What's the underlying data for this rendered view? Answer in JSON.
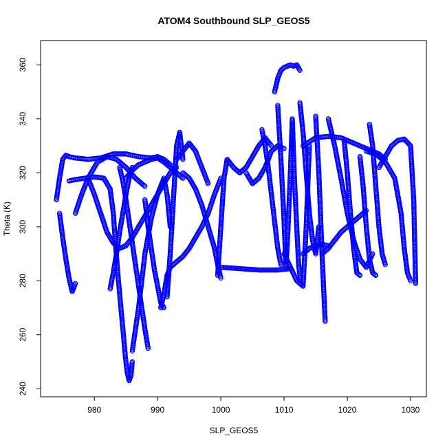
{
  "chart_data": {
    "type": "scatter",
    "title": "ATOM4 Southbound SLP_GEOS5",
    "xlabel": "SLP_GEOS5",
    "ylabel": "Theta (K)",
    "xlim": [
      971.5,
      1032.5
    ],
    "ylim": [
      237.0,
      369.0
    ],
    "xticks": [
      980,
      990,
      1000,
      1010,
      1020,
      1030
    ],
    "yticks": [
      240,
      260,
      280,
      300,
      320,
      340,
      360
    ],
    "marker": "open-circle",
    "point_color": "#0000ff",
    "line_color": "#0000ff",
    "grid": false,
    "legend": "none",
    "series": [
      {
        "x": [
          974.0,
          974.5,
          975.0,
          975.5,
          976.0,
          977.0,
          979.0,
          981.0,
          983.0,
          985.0,
          987.0,
          989.0,
          990.0,
          991.0,
          992.0
        ],
        "y": [
          310.0,
          318.0,
          325.0,
          326.5,
          326.0,
          325.5,
          325.0,
          325.5,
          327.0,
          327.0,
          326.0,
          325.5,
          326.0,
          325.0,
          323.0
        ]
      },
      {
        "x": [
          974.5,
          975.0,
          975.5,
          976.0,
          976.5,
          977.0
        ],
        "y": [
          305.0,
          296.0,
          288.0,
          281.0,
          276.0,
          279.0
        ]
      },
      {
        "x": [
          976.0,
          977.0,
          978.5,
          980.0,
          981.5,
          982.5,
          983.0,
          983.3,
          983.7,
          984.2,
          984.6,
          984.9,
          985.2,
          985.5,
          985.8,
          986.0
        ],
        "y": [
          317.0,
          317.5,
          318.0,
          318.5,
          318.0,
          314.0,
          305.0,
          295.0,
          283.0,
          270.0,
          260.0,
          252.0,
          246.0,
          243.0,
          245.0,
          250.0
        ]
      },
      {
        "x": [
          977.0,
          978.0,
          979.0,
          980.5,
          982.0,
          983.5,
          985.0,
          986.5,
          988.0
        ],
        "y": [
          305.0,
          312.0,
          318.0,
          324.0,
          326.0,
          325.0,
          322.0,
          318.0,
          315.0
        ]
      },
      {
        "x": [
          979.0,
          980.0,
          981.0,
          982.0,
          983.0,
          984.0,
          985.0,
          986.0,
          987.0,
          988.0,
          989.0,
          990.0,
          991.0,
          992.0,
          993.0
        ],
        "y": [
          318.0,
          312.0,
          305.0,
          298.0,
          294.0,
          292.0,
          293.0,
          296.0,
          300.0,
          304.0,
          308.0,
          312.0,
          316.0,
          320.0,
          322.0
        ]
      },
      {
        "x": [
          982.5,
          983.0,
          983.5,
          984.0,
          984.5,
          985.0,
          985.5,
          986.0
        ],
        "y": [
          277.0,
          283.0,
          290.0,
          298.0,
          305.0,
          312.0,
          318.0,
          322.0
        ]
      },
      {
        "x": [
          984.0,
          984.5,
          985.0,
          985.5,
          986.0,
          986.5,
          987.0,
          987.5,
          988.0,
          988.5
        ],
        "y": [
          322.0,
          317.0,
          310.0,
          302.0,
          294.0,
          286.0,
          278.0,
          270.0,
          262.0,
          255.0
        ]
      },
      {
        "x": [
          986.0,
          986.5,
          987.0,
          987.5,
          988.0,
          989.0,
          990.0,
          991.0,
          991.5,
          992.0
        ],
        "y": [
          254.0,
          262.0,
          270.0,
          280.0,
          290.0,
          303.0,
          312.0,
          318.0,
          312.0,
          300.0
        ]
      },
      {
        "x": [
          985.0,
          986.0,
          987.0,
          988.0,
          989.0,
          990.0,
          991.0,
          992.0,
          993.0,
          994.0
        ],
        "y": [
          318.0,
          321.0,
          323.0,
          324.0,
          325.0,
          325.5,
          324.0,
          322.0,
          320.0,
          318.0
        ]
      },
      {
        "x": [
          988.0,
          988.5,
          989.0,
          989.5,
          990.0,
          990.5,
          991.0
        ],
        "y": [
          310.0,
          300.0,
          292.0,
          284.0,
          278.0,
          272.0,
          270.0
        ]
      },
      {
        "x": [
          990.5,
          991.0,
          991.5,
          992.0,
          992.5,
          993.0,
          994.0,
          995.0,
          996.0,
          997.0,
          998.0,
          999.0,
          1000.0
        ],
        "y": [
          270.0,
          275.0,
          282.0,
          285.0,
          286.0,
          287.0,
          289.0,
          292.0,
          296.0,
          300.0,
          305.0,
          312.0,
          318.0
        ]
      },
      {
        "x": [
          991.5,
          992.0,
          992.5,
          993.0,
          993.5,
          994.0
        ],
        "y": [
          274.0,
          290.0,
          310.0,
          330.0,
          335.0,
          325.0
        ]
      },
      {
        "x": [
          993.0,
          994.0,
          995.0,
          996.0,
          997.0,
          998.0
        ],
        "y": [
          325.0,
          328.0,
          331.0,
          328.0,
          322.0,
          316.0
        ]
      },
      {
        "x": [
          994.0,
          995.0,
          996.0,
          997.0,
          998.0,
          999.0,
          999.5,
          1000.0
        ],
        "y": [
          320.0,
          318.0,
          314.0,
          308.0,
          300.0,
          292.0,
          286.0,
          281.0
        ]
      },
      {
        "x": [
          999.5,
          1000.0,
          1000.5,
          1001.0,
          1002.0,
          1003.0,
          1004.0,
          1005.0,
          1006.0,
          1007.0,
          1008.0
        ],
        "y": [
          282.0,
          300.0,
          318.0,
          325.0,
          322.0,
          320.0,
          322.0,
          326.0,
          330.0,
          333.0,
          330.0
        ]
      },
      {
        "x": [
          1000.0,
          1003.0,
          1006.0,
          1009.0,
          1011.0
        ],
        "y": [
          285.0,
          284.5,
          284.0,
          284.0,
          284.5
        ]
      },
      {
        "x": [
          1004.0,
          1005.0,
          1006.0,
          1007.0,
          1008.0,
          1009.0,
          1010.0
        ],
        "y": [
          320.0,
          316.0,
          318.0,
          322.0,
          328.0,
          330.0,
          329.0
        ]
      },
      {
        "x": [
          1006.5,
          1007.0,
          1007.5,
          1008.0,
          1008.5,
          1009.0,
          1009.5
        ],
        "y": [
          336.0,
          330.0,
          322.0,
          312.0,
          302.0,
          292.0,
          286.0
        ]
      },
      {
        "x": [
          1008.5,
          1009.0,
          1009.5,
          1010.0,
          1010.5,
          1011.0,
          1011.5,
          1012.0,
          1012.5
        ],
        "y": [
          350.0,
          355.0,
          358.0,
          359.0,
          359.5,
          360.0,
          359.5,
          360.0,
          358.0
        ]
      },
      {
        "x": [
          1009.0,
          1009.5,
          1010.0,
          1010.3,
          1010.6,
          1011.0,
          1011.3,
          1011.6,
          1012.0,
          1012.3,
          1012.6
        ],
        "y": [
          345.0,
          325.0,
          302.0,
          285.0,
          298.0,
          320.0,
          340.0,
          320.0,
          300.0,
          286.0,
          280.0
        ]
      },
      {
        "x": [
          1010.0,
          1011.0,
          1012.0,
          1013.0,
          1013.5,
          1014.0
        ],
        "y": [
          290.0,
          285.0,
          280.0,
          278.0,
          300.0,
          330.0
        ]
      },
      {
        "x": [
          1012.5,
          1013.0,
          1013.5,
          1014.0,
          1014.5,
          1015.0,
          1015.5
        ],
        "y": [
          346.0,
          335.0,
          320.0,
          305.0,
          295.0,
          290.0,
          300.0
        ]
      },
      {
        "x": [
          1013.0,
          1014.0,
          1015.0,
          1016.0,
          1017.0
        ],
        "y": [
          290.0,
          292.0,
          293.0,
          293.5,
          293.0
        ]
      },
      {
        "x": [
          1013.0,
          1015.0,
          1017.0,
          1019.0,
          1021.0,
          1023.0,
          1025.0,
          1026.0
        ],
        "y": [
          330.0,
          333.0,
          333.5,
          333.0,
          331.0,
          329.0,
          327.0,
          325.0
        ]
      },
      {
        "x": [
          1015.0,
          1015.5,
          1016.0,
          1016.5
        ],
        "y": [
          341.0,
          320.0,
          290.0,
          265.0
        ]
      },
      {
        "x": [
          1017.0,
          1018.0,
          1019.0,
          1020.0,
          1021.0,
          1022.0,
          1023.0,
          1024.0
        ],
        "y": [
          340.0,
          330.0,
          318.0,
          305.0,
          295.0,
          288.0,
          285.0,
          290.0
        ]
      },
      {
        "x": [
          1016.0,
          1017.0,
          1018.0,
          1019.0,
          1020.0,
          1021.0,
          1022.0,
          1023.0
        ],
        "y": [
          290.0,
          292.0,
          295.0,
          298.0,
          300.0,
          302.0,
          304.0,
          306.0
        ]
      },
      {
        "x": [
          1019.5,
          1020.0,
          1020.5,
          1021.0,
          1021.5,
          1022.0
        ],
        "y": [
          332.0,
          320.0,
          305.0,
          292.0,
          283.0,
          282.0
        ]
      },
      {
        "x": [
          1022.0,
          1022.5,
          1023.0,
          1023.5,
          1024.0,
          1024.5
        ],
        "y": [
          326.0,
          315.0,
          300.0,
          288.0,
          283.0,
          282.0
        ]
      },
      {
        "x": [
          1023.5,
          1024.0,
          1024.5,
          1025.0,
          1025.5,
          1026.0
        ],
        "y": [
          338.0,
          330.0,
          315.0,
          300.0,
          290.0,
          286.0
        ]
      },
      {
        "x": [
          1025.0,
          1026.0,
          1027.0,
          1028.0,
          1029.0,
          1030.0,
          1030.5,
          1030.8
        ],
        "y": [
          322.0,
          326.0,
          330.0,
          332.0,
          332.5,
          330.0,
          310.0,
          279.0
        ]
      },
      {
        "x": [
          1023.0,
          1024.5,
          1026.0,
          1027.5,
          1028.5,
          1029.0,
          1029.5,
          1030.0
        ],
        "y": [
          328.0,
          327.0,
          324.0,
          318.0,
          305.0,
          292.0,
          283.0,
          280.0
        ]
      }
    ]
  }
}
